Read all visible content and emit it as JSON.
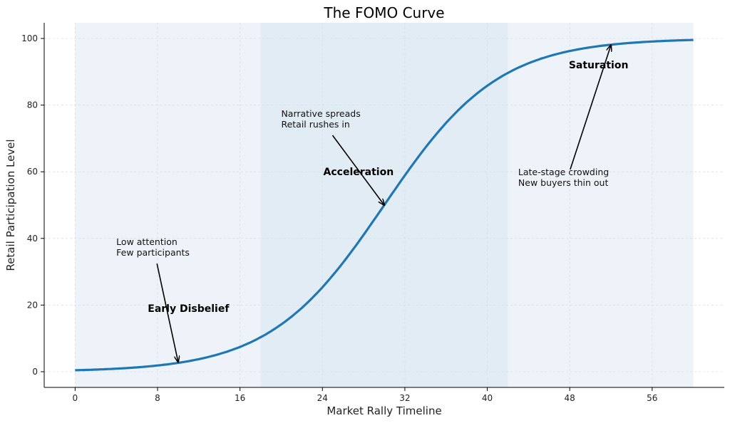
{
  "chart_data": {
    "type": "line",
    "title": "The FOMO Curve",
    "xlabel": "Market Rally Timeline",
    "ylabel": "Retail Participation Level",
    "xlim": [
      -3,
      63
    ],
    "ylim": [
      -4.7,
      104.7
    ],
    "xticks": [
      0,
      8,
      16,
      24,
      32,
      40,
      48,
      56
    ],
    "yticks": [
      0,
      20,
      40,
      60,
      80,
      100
    ],
    "grid": true,
    "series": [
      {
        "function": "100 / (1 + exp(-0.18 * (x - 30)))",
        "x_range": [
          0,
          60
        ],
        "color": "#1f77b4"
      }
    ],
    "phases": [
      {
        "label": "Early Disbelief",
        "x_range": [
          0,
          18
        ],
        "color": "#eef3f9",
        "label_at": [
          11,
          18
        ]
      },
      {
        "label": "Acceleration",
        "x_range": [
          18,
          42
        ],
        "color": "#e2ecf4",
        "label_at": [
          27.5,
          59
        ]
      },
      {
        "label": "Saturation",
        "x_range": [
          42,
          60
        ],
        "color": "#eef3f9",
        "label_at": [
          50.8,
          91
        ]
      }
    ],
    "annotations": [
      {
        "lines": [
          "Low attention",
          "Few participants"
        ],
        "text_at": [
          4,
          38
        ],
        "arrow_to": [
          10,
          2.9
        ]
      },
      {
        "lines": [
          "Narrative spreads",
          "Retail rushes in"
        ],
        "text_at": [
          20,
          76.5
        ],
        "arrow_to": [
          30,
          50
        ]
      },
      {
        "lines": [
          "Late-stage crowding",
          "New buyers thin out"
        ],
        "text_at": [
          43,
          59
        ],
        "arrow_to": [
          52,
          98
        ]
      }
    ]
  }
}
